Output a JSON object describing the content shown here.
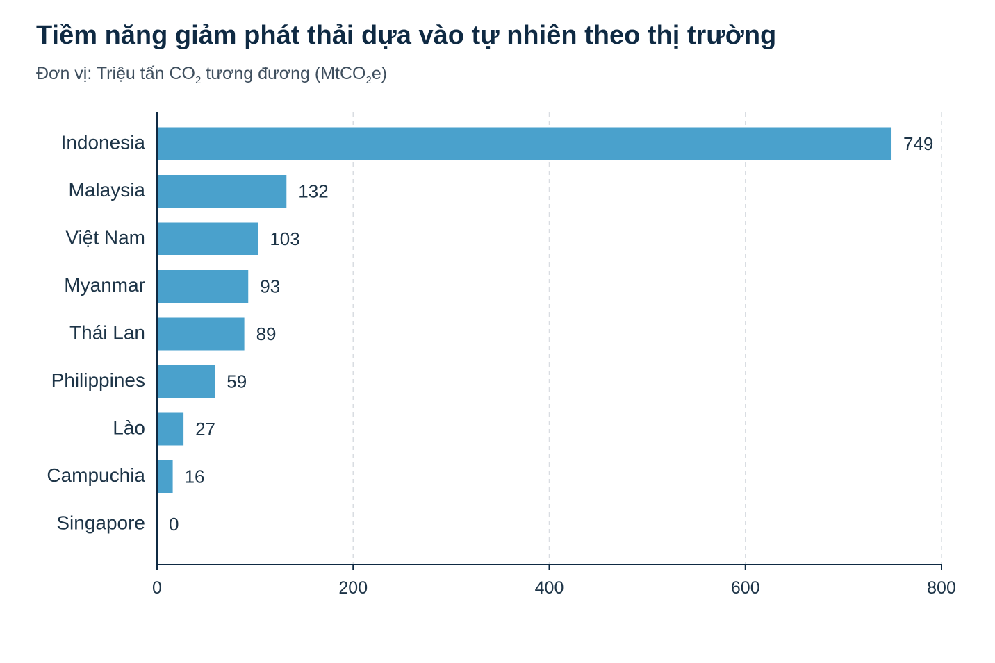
{
  "chart_data": {
    "type": "bar",
    "orientation": "horizontal",
    "title": "Tiềm năng giảm phát thải dựa vào tự nhiên theo thị trường",
    "subtitle": {
      "prefix": "Đơn vị: Triệu tấn CO",
      "sub1": "2",
      "middle": " tương đương (MtCO",
      "sub2": "2",
      "suffix": "e)"
    },
    "categories": [
      "Indonesia",
      "Malaysia",
      "Việt Nam",
      "Myanmar",
      "Thái Lan",
      "Philippines",
      "Lào",
      "Campuchia",
      "Singapore"
    ],
    "values": [
      749,
      132,
      103,
      93,
      89,
      59,
      27,
      16,
      0
    ],
    "xlim": [
      0,
      800
    ],
    "xticks": [
      0,
      200,
      400,
      600,
      800
    ],
    "grid": true,
    "bar_color": "#4aa1cc",
    "axis_color": "#0f2a43",
    "grid_color": "#d9dde2"
  }
}
